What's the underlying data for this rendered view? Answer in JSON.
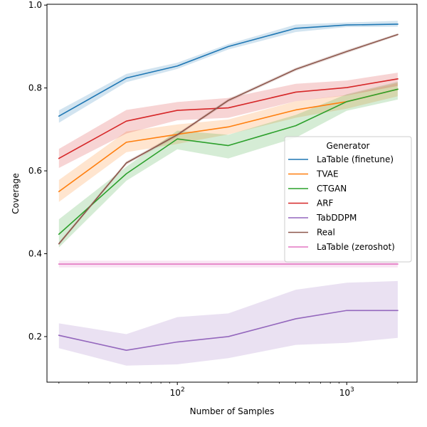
{
  "chart_data": {
    "type": "line",
    "xlabel": "Number of Samples",
    "ylabel": "Coverage",
    "x_scale": "log",
    "xlim": [
      17,
      2600
    ],
    "ylim": [
      0.09,
      1.002
    ],
    "x": [
      20,
      50,
      100,
      200,
      500,
      1000,
      2000
    ],
    "y_ticks": [
      {
        "value": 0.2,
        "label": "0.2"
      },
      {
        "value": 0.4,
        "label": "0.4"
      },
      {
        "value": 0.6,
        "label": "0.6"
      },
      {
        "value": 0.8,
        "label": "0.8"
      },
      {
        "value": 1.0,
        "label": "1.0"
      }
    ],
    "x_ticks": [
      {
        "value": 100,
        "base": "10",
        "exp": "2"
      },
      {
        "value": 1000,
        "base": "10",
        "exp": "3"
      }
    ],
    "grid": false,
    "legend": {
      "title": "Generator",
      "placement": "center-right"
    },
    "series": [
      {
        "name": "LaTable (finetune)",
        "color": "#1f77b4",
        "values": [
          0.732,
          0.824,
          0.853,
          0.9,
          0.944,
          0.952,
          0.954
        ],
        "lower": [
          0.716,
          0.814,
          0.846,
          0.893,
          0.935,
          0.947,
          0.948
        ],
        "upper": [
          0.746,
          0.834,
          0.861,
          0.906,
          0.953,
          0.958,
          0.962
        ]
      },
      {
        "name": "TVAE",
        "color": "#ff7f0e",
        "values": [
          0.55,
          0.669,
          0.688,
          0.706,
          0.747,
          0.767,
          0.797
        ],
        "lower": [
          0.525,
          0.645,
          0.665,
          0.688,
          0.728,
          0.75,
          0.78
        ],
        "upper": [
          0.578,
          0.695,
          0.712,
          0.724,
          0.768,
          0.783,
          0.812
        ]
      },
      {
        "name": "CTGAN",
        "color": "#2ca02c",
        "values": [
          0.447,
          0.593,
          0.677,
          0.661,
          0.709,
          0.767,
          0.797
        ],
        "lower": [
          0.415,
          0.576,
          0.652,
          0.63,
          0.68,
          0.745,
          0.772
        ],
        "upper": [
          0.483,
          0.61,
          0.697,
          0.687,
          0.735,
          0.785,
          0.815
        ]
      },
      {
        "name": "ARF",
        "color": "#d62728",
        "values": [
          0.63,
          0.72,
          0.746,
          0.752,
          0.79,
          0.801,
          0.822
        ],
        "lower": [
          0.607,
          0.69,
          0.722,
          0.728,
          0.768,
          0.782,
          0.805
        ],
        "upper": [
          0.653,
          0.747,
          0.766,
          0.776,
          0.81,
          0.818,
          0.837
        ]
      },
      {
        "name": "TabDDPM",
        "color": "#9467bd",
        "values": [
          0.203,
          0.167,
          0.187,
          0.2,
          0.243,
          0.263,
          0.263
        ],
        "lower": [
          0.172,
          0.13,
          0.133,
          0.148,
          0.18,
          0.185,
          0.197
        ],
        "upper": [
          0.232,
          0.206,
          0.247,
          0.256,
          0.313,
          0.33,
          0.334
        ]
      },
      {
        "name": "Real",
        "color": "#8c564b",
        "values": [
          0.424,
          0.619,
          0.687,
          0.77,
          0.845,
          0.888,
          0.929
        ],
        "lower": [
          0.42,
          0.615,
          0.683,
          0.766,
          0.841,
          0.884,
          0.926
        ],
        "upper": [
          0.428,
          0.623,
          0.691,
          0.774,
          0.849,
          0.892,
          0.932
        ]
      },
      {
        "name": "LaTable (zeroshot)",
        "color": "#e377c2",
        "values": [
          0.375,
          0.375,
          0.375,
          0.375,
          0.375,
          0.375,
          0.375
        ],
        "lower": [
          0.367,
          0.367,
          0.367,
          0.367,
          0.367,
          0.367,
          0.367
        ],
        "upper": [
          0.383,
          0.383,
          0.383,
          0.383,
          0.383,
          0.383,
          0.383
        ]
      }
    ]
  }
}
